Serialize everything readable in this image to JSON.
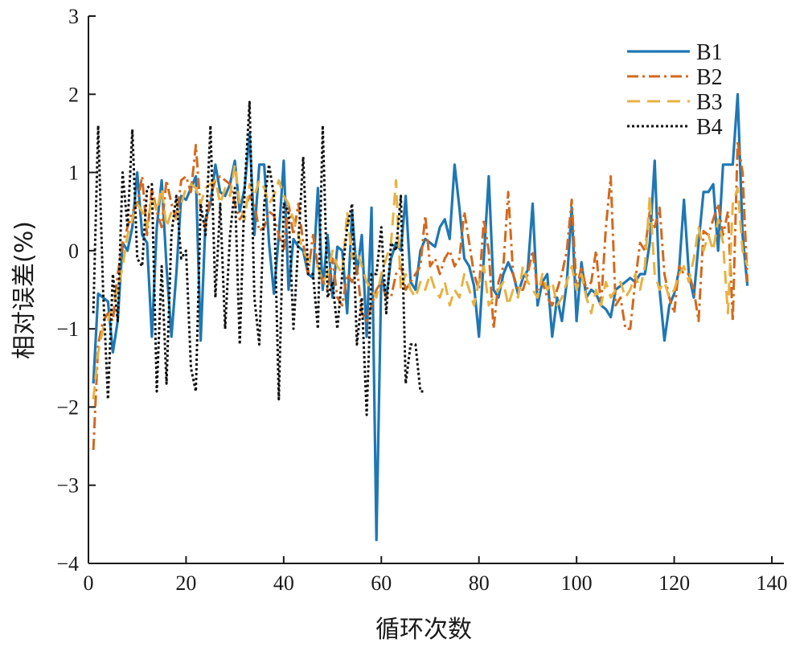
{
  "chart_data": {
    "type": "line",
    "title": "",
    "xlabel": "循环次数",
    "ylabel": "相对误差(%)",
    "xlim": [
      0,
      140
    ],
    "ylim": [
      -4,
      3
    ],
    "xticks": [
      0,
      20,
      40,
      60,
      80,
      100,
      120,
      140
    ],
    "yticks": [
      3,
      2,
      1,
      0,
      -1,
      -2,
      -3,
      -4
    ],
    "ytick_labels": [
      "3",
      "2",
      "1",
      "0",
      "−1",
      "−2",
      "−3",
      "−4"
    ],
    "grid": false,
    "legend_position": "top-right",
    "series": [
      {
        "name": "B1",
        "color": "#1f77b4",
        "style": "solid",
        "x": [
          1,
          2,
          3,
          4,
          5,
          6,
          7,
          8,
          9,
          10,
          11,
          12,
          13,
          14,
          15,
          16,
          17,
          18,
          19,
          20,
          21,
          22,
          23,
          24,
          25,
          26,
          27,
          28,
          29,
          30,
          31,
          32,
          33,
          34,
          35,
          36,
          37,
          38,
          39,
          40,
          41,
          42,
          43,
          44,
          45,
          46,
          47,
          48,
          49,
          50,
          51,
          52,
          53,
          54,
          55,
          56,
          57,
          58,
          59,
          60,
          61,
          62,
          63,
          64,
          65,
          66,
          67,
          68,
          69,
          70,
          71,
          72,
          73,
          74,
          75,
          76,
          77,
          78,
          79,
          80,
          81,
          82,
          83,
          84,
          85,
          86,
          87,
          88,
          89,
          90,
          91,
          92,
          93,
          94,
          95,
          96,
          97,
          98,
          99,
          100,
          101,
          102,
          103,
          104,
          105,
          106,
          107,
          108,
          109,
          110,
          111,
          112,
          113,
          114,
          115,
          116,
          117,
          118,
          119,
          120,
          121,
          122,
          123,
          124,
          125,
          126,
          127,
          128,
          129,
          130,
          131,
          132,
          133,
          134,
          135
        ],
        "y": [
          -1.7,
          -0.55,
          -0.6,
          -0.65,
          -1.3,
          -0.9,
          0.1,
          0.0,
          0.3,
          1.0,
          0.2,
          0.1,
          -1.1,
          0.3,
          0.9,
          -0.2,
          -1.1,
          -0.3,
          0.7,
          0.65,
          0.8,
          0.95,
          -1.15,
          0.4,
          0.6,
          1.1,
          0.75,
          0.7,
          0.85,
          1.15,
          0.5,
          0.8,
          1.5,
          0.2,
          1.1,
          1.1,
          0.1,
          -0.55,
          0.2,
          1.15,
          -0.5,
          0.15,
          0.05,
          0.0,
          -0.3,
          -0.35,
          0.8,
          -0.5,
          0.2,
          -0.6,
          0.05,
          0.0,
          -0.8,
          0.5,
          -0.3,
          0.2,
          -1.1,
          0.55,
          -3.7,
          -0.3,
          -0.6,
          -0.1,
          0.1,
          0.0,
          0.7,
          -0.4,
          -0.5,
          0.0,
          0.15,
          0.1,
          0.05,
          0.3,
          0.4,
          0.15,
          1.1,
          0.55,
          -0.1,
          -0.2,
          -0.45,
          -1.1,
          -0.1,
          0.95,
          -0.5,
          -0.6,
          -0.3,
          -0.15,
          -0.3,
          -0.55,
          -0.35,
          -0.25,
          0.6,
          -0.7,
          -0.4,
          -0.3,
          -1.1,
          -0.6,
          -0.9,
          -0.4,
          0.55,
          -0.9,
          -0.15,
          -0.6,
          -0.5,
          -0.55,
          -0.7,
          -0.75,
          -0.85,
          -0.5,
          -0.45,
          -0.4,
          -0.35,
          -0.4,
          -0.3,
          -0.3,
          0.1,
          1.15,
          -0.5,
          -1.15,
          -0.7,
          -0.55,
          -0.25,
          0.65,
          -0.3,
          -0.6,
          0.1,
          0.75,
          0.75,
          0.85,
          0.0,
          1.1,
          1.1,
          1.1,
          2.0,
          0.2,
          -0.45
        ]
      },
      {
        "name": "B2",
        "color": "#d2691e",
        "style": "dashdot",
        "x": [
          1,
          2,
          3,
          4,
          5,
          6,
          7,
          8,
          9,
          10,
          11,
          12,
          13,
          14,
          15,
          16,
          17,
          18,
          19,
          20,
          21,
          22,
          23,
          24,
          25,
          26,
          27,
          28,
          29,
          30,
          31,
          32,
          33,
          34,
          35,
          36,
          37,
          38,
          39,
          40,
          41,
          42,
          43,
          44,
          45,
          46,
          47,
          48,
          49,
          50,
          51,
          52,
          53,
          54,
          55,
          56,
          57,
          58,
          59,
          60,
          61,
          62,
          63,
          64,
          65,
          66,
          67,
          68,
          69,
          70,
          71,
          72,
          73,
          74,
          75,
          76,
          77,
          78,
          79,
          80,
          81,
          82,
          83,
          84,
          85,
          86,
          87,
          88,
          89,
          90,
          91,
          92,
          93,
          94,
          95,
          96,
          97,
          98,
          99,
          100,
          101,
          102,
          103,
          104,
          105,
          106,
          107,
          108,
          109,
          110,
          111,
          112,
          113,
          114,
          115,
          116,
          117,
          118,
          119,
          120,
          121,
          122,
          123,
          124,
          125,
          126,
          127,
          128,
          129,
          130,
          131,
          132,
          133,
          134,
          135
        ],
        "y": [
          -2.55,
          -1.2,
          -0.9,
          -0.8,
          -0.9,
          -0.3,
          0.1,
          0.3,
          0.5,
          0.6,
          0.95,
          0.2,
          0.8,
          0.5,
          0.3,
          0.9,
          0.6,
          0.4,
          0.9,
          0.95,
          0.75,
          1.35,
          0.5,
          0.3,
          0.7,
          0.9,
          0.95,
          0.9,
          0.85,
          0.6,
          0.4,
          0.5,
          0.7,
          0.6,
          0.25,
          0.3,
          0.5,
          0.45,
          0.2,
          0.0,
          0.6,
          0.2,
          0.6,
          0.1,
          -0.3,
          0.2,
          -0.2,
          -0.4,
          -0.5,
          -0.1,
          -0.6,
          -0.7,
          -0.3,
          -0.4,
          -0.2,
          -0.8,
          -0.9,
          -0.7,
          -0.5,
          -0.4,
          -0.6,
          -0.6,
          -0.3,
          -0.2,
          -0.5,
          -0.4,
          -0.3,
          -0.2,
          0.45,
          -0.2,
          -0.1,
          -0.3,
          -0.1,
          0.0,
          -0.2,
          -0.1,
          0.5,
          0.1,
          -0.3,
          -0.5,
          0.4,
          0.0,
          -1.0,
          -0.4,
          -0.2,
          0.75,
          -0.3,
          -0.5,
          -0.5,
          -0.3,
          0.0,
          -0.5,
          -0.4,
          -0.6,
          -0.7,
          -0.5,
          -0.3,
          0.0,
          0.65,
          -0.5,
          -0.2,
          -0.5,
          -0.4,
          0.0,
          -0.7,
          0.3,
          0.95,
          -0.7,
          -0.6,
          -1.0,
          -1.0,
          -0.4,
          0.1,
          0.0,
          0.5,
          0.3,
          0.55,
          -0.3,
          -0.6,
          -0.8,
          -0.2,
          -0.3,
          -0.3,
          -0.5,
          -0.9,
          0.25,
          0.2,
          0.4,
          0.6,
          0.2,
          0.5,
          -0.9,
          1.4,
          1.0,
          -0.4
        ]
      },
      {
        "name": "B3",
        "color": "#e8b240",
        "style": "dashed",
        "x": [
          1,
          2,
          3,
          4,
          5,
          6,
          7,
          8,
          9,
          10,
          11,
          12,
          13,
          14,
          15,
          16,
          17,
          18,
          19,
          20,
          21,
          22,
          23,
          24,
          25,
          26,
          27,
          28,
          29,
          30,
          31,
          32,
          33,
          34,
          35,
          36,
          37,
          38,
          39,
          40,
          41,
          42,
          43,
          44,
          45,
          46,
          47,
          48,
          49,
          50,
          51,
          52,
          53,
          54,
          55,
          56,
          57,
          58,
          59,
          60,
          61,
          62,
          63,
          64,
          65,
          66,
          67,
          68,
          69,
          70,
          71,
          72,
          73,
          74,
          75,
          76,
          77,
          78,
          79,
          80,
          81,
          82,
          83,
          84,
          85,
          86,
          87,
          88,
          89,
          90,
          91,
          92,
          93,
          94,
          95,
          96,
          97,
          98,
          99,
          100,
          101,
          102,
          103,
          104,
          105,
          106,
          107,
          108,
          109,
          110,
          111,
          112,
          113,
          114,
          115,
          116,
          117,
          118,
          119,
          120,
          121,
          122,
          123,
          124,
          125,
          126,
          127,
          128,
          129,
          130,
          131,
          132,
          133,
          134,
          135
        ],
        "y": [
          -1.9,
          -1.3,
          -1.0,
          -0.9,
          -0.7,
          -0.5,
          -0.2,
          0.2,
          0.4,
          0.6,
          0.5,
          0.3,
          0.7,
          0.5,
          0.8,
          0.3,
          0.5,
          0.4,
          0.6,
          0.8,
          0.85,
          0.8,
          0.6,
          0.8,
          0.85,
          0.9,
          0.6,
          0.8,
          0.7,
          1.1,
          0.6,
          0.4,
          0.85,
          0.7,
          0.9,
          0.8,
          0.6,
          0.7,
          0.9,
          0.7,
          0.6,
          0.4,
          0.2,
          0.0,
          -0.1,
          -0.2,
          -0.2,
          -0.4,
          -0.3,
          0.0,
          -0.2,
          -0.3,
          0.5,
          -0.1,
          0.0,
          -0.2,
          -0.4,
          -0.5,
          -0.6,
          -0.3,
          -0.1,
          0.1,
          0.9,
          -0.5,
          -0.3,
          -0.5,
          -0.6,
          -0.4,
          -0.5,
          -0.3,
          -0.5,
          -0.6,
          -0.4,
          -0.7,
          -0.5,
          -0.6,
          -0.3,
          -0.5,
          -0.7,
          -0.4,
          -0.2,
          -0.7,
          -0.6,
          -0.5,
          -0.4,
          -0.7,
          -0.5,
          -0.6,
          -0.2,
          -0.4,
          -0.5,
          -0.6,
          -0.3,
          -0.5,
          -0.4,
          -0.7,
          -0.6,
          -0.4,
          -0.2,
          -0.5,
          -0.3,
          -0.6,
          -0.8,
          -0.5,
          -0.7,
          -0.4,
          -0.6,
          -0.5,
          -0.4,
          -0.6,
          -0.5,
          -0.3,
          -0.5,
          -0.2,
          0.7,
          -0.3,
          -0.5,
          -0.4,
          -0.6,
          -0.5,
          -0.3,
          -0.2,
          -0.4,
          -0.1,
          0.3,
          0.0,
          0.2,
          0.0,
          0.4,
          0.1,
          -0.8,
          0.6,
          0.8,
          0.0,
          -0.2
        ]
      },
      {
        "name": "B4",
        "color": "#111111",
        "style": "dotted",
        "x": [
          1,
          2,
          3,
          4,
          5,
          6,
          7,
          8,
          9,
          10,
          11,
          12,
          13,
          14,
          15,
          16,
          17,
          18,
          19,
          20,
          21,
          22,
          23,
          24,
          25,
          26,
          27,
          28,
          29,
          30,
          31,
          32,
          33,
          34,
          35,
          36,
          37,
          38,
          39,
          40,
          41,
          42,
          43,
          44,
          45,
          46,
          47,
          48,
          49,
          50,
          51,
          52,
          53,
          54,
          55,
          56,
          57,
          58,
          59,
          60,
          61,
          62,
          63,
          64,
          65,
          66,
          67,
          68,
          69
        ],
        "y": [
          -0.8,
          1.6,
          -0.5,
          -1.9,
          -0.3,
          -0.9,
          1.0,
          0.3,
          1.55,
          -0.1,
          -0.2,
          0.8,
          0.85,
          -1.8,
          -0.2,
          -1.7,
          0.2,
          0.7,
          -0.1,
          0.0,
          -1.5,
          -1.8,
          0.6,
          0.2,
          1.6,
          -0.6,
          0.6,
          -1.0,
          0.2,
          0.8,
          -1.2,
          0.8,
          1.9,
          -0.6,
          -1.2,
          0.6,
          1.1,
          0.7,
          -1.9,
          0.6,
          0.5,
          -1.0,
          0.1,
          1.2,
          -0.3,
          -0.3,
          -1.0,
          1.6,
          -0.6,
          -0.4,
          -1.0,
          -0.3,
          0.3,
          0.6,
          -1.2,
          -0.6,
          -2.1,
          -0.3,
          -0.3,
          0.3,
          -0.8,
          0.1,
          0.0,
          0.7,
          -1.7,
          -1.2,
          -1.2,
          -1.8,
          -1.8
        ]
      }
    ]
  }
}
